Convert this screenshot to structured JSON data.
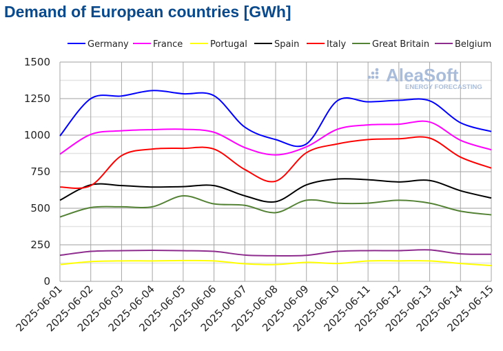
{
  "chart_data": {
    "type": "line",
    "title": "Demand of European countries [GWh]",
    "xlabel": "",
    "ylabel": "",
    "ylim": [
      0,
      1500
    ],
    "yticks": [
      0,
      250,
      500,
      750,
      1000,
      1250,
      1500
    ],
    "ytick_labels": [
      "0",
      "250",
      "500",
      "750",
      "1000",
      "1250",
      "1500"
    ],
    "grid": true,
    "legend": "top",
    "x": [
      "2025-06-01",
      "2025-06-02",
      "2025-06-03",
      "2025-06-04",
      "2025-06-05",
      "2025-06-06",
      "2025-06-07",
      "2025-06-08",
      "2025-06-09",
      "2025-06-10",
      "2025-06-11",
      "2025-06-12",
      "2025-06-13",
      "2025-06-14",
      "2025-06-15"
    ],
    "series": [
      {
        "name": "Germany",
        "color": "#0000ff",
        "values": [
          995,
          1250,
          1268,
          1305,
          1283,
          1270,
          1055,
          970,
          940,
          1235,
          1228,
          1238,
          1235,
          1085,
          1025
        ]
      },
      {
        "name": "France",
        "color": "#ff00ff",
        "values": [
          870,
          1005,
          1030,
          1038,
          1040,
          1020,
          915,
          865,
          920,
          1040,
          1070,
          1075,
          1090,
          965,
          900
        ]
      },
      {
        "name": "Portugal",
        "color": "#ffff00",
        "values": [
          115,
          135,
          140,
          140,
          142,
          140,
          120,
          115,
          130,
          122,
          140,
          140,
          140,
          122,
          108
        ]
      },
      {
        "name": "Spain",
        "color": "#000000",
        "values": [
          555,
          660,
          655,
          645,
          648,
          655,
          585,
          545,
          660,
          700,
          695,
          680,
          690,
          620,
          570
        ]
      },
      {
        "name": "Italy",
        "color": "#ff0000",
        "values": [
          645,
          655,
          860,
          905,
          910,
          905,
          765,
          685,
          880,
          940,
          970,
          975,
          980,
          850,
          775
        ]
      },
      {
        "name": "Great Britain",
        "color": "#548235",
        "values": [
          440,
          505,
          510,
          510,
          585,
          530,
          520,
          470,
          555,
          535,
          535,
          555,
          535,
          480,
          455
        ]
      },
      {
        "name": "Belgium",
        "color": "#8e2c8e",
        "values": [
          178,
          205,
          210,
          212,
          210,
          205,
          180,
          175,
          178,
          205,
          210,
          210,
          215,
          188,
          185
        ]
      }
    ]
  },
  "watermark": {
    "brand": "AleaSoft",
    "tagline": "ENERGY FORECASTING"
  }
}
